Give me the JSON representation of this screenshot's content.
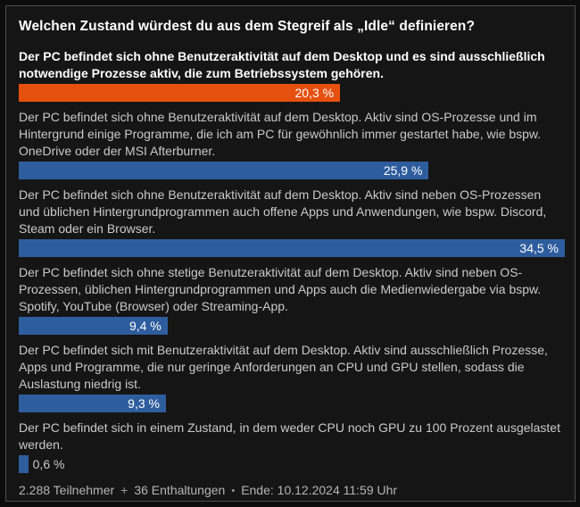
{
  "colors": {
    "page_bg": "#0c0c0c",
    "panel_bg": "#151515",
    "panel_border": "#4d4d4d",
    "title_text": "#ffffff",
    "option_text": "#c9c9c9",
    "highlight_text": "#ffffff",
    "bar_orange": "#e5500f",
    "bar_blue": "#2e5d9e",
    "bar_label": "#ffffff",
    "footer_text": "#b5b5b5",
    "footer_sep": "#9a9a9a"
  },
  "poll": {
    "title": "Welchen Zustand würdest du aus dem Stegreif als „Idle“ definieren?",
    "max_value": 34.5,
    "options": [
      {
        "text": "Der PC befindet sich ohne Benutzeraktivität auf dem Desktop und es sind ausschließlich\nnotwendige Prozesse aktiv, die zum Betriebssystem gehören.",
        "value": 20.3,
        "value_label": "20,3 %",
        "color": "#e5500f",
        "highlighted": true,
        "label_inside": true
      },
      {
        "text": "Der PC befindet sich ohne Benutzeraktivität auf dem Desktop. Aktiv sind OS-Prozesse und im\nHintergrund einige Programme, die ich am PC für gewöhnlich immer gestartet habe, wie bspw.\nOneDrive oder der MSI Afterburner.",
        "value": 25.9,
        "value_label": "25,9 %",
        "color": "#2e5d9e",
        "highlighted": false,
        "label_inside": true
      },
      {
        "text": "Der PC befindet sich ohne Benutzeraktivität auf dem Desktop. Aktiv sind neben OS-Prozessen\nund üblichen Hintergrundprogrammen auch offene Apps und Anwendungen, wie bspw. Discord,\nSteam oder ein Browser.",
        "value": 34.5,
        "value_label": "34,5 %",
        "color": "#2e5d9e",
        "highlighted": false,
        "label_inside": true
      },
      {
        "text": "Der PC befindet sich ohne stetige Benutzeraktivität auf dem Desktop. Aktiv sind neben OS-\nProzessen, üblichen Hintergrundprogrammen und Apps auch die Medienwiedergabe via bspw.\nSpotify, YouTube (Browser) oder Streaming-App.",
        "value": 9.4,
        "value_label": "9,4 %",
        "color": "#2e5d9e",
        "highlighted": false,
        "label_inside": true
      },
      {
        "text": "Der PC befindet sich mit Benutzeraktivität auf dem Desktop. Aktiv sind ausschließlich Prozesse,\nApps und Programme, die nur geringe Anforderungen an CPU und GPU stellen, sodass die\nAuslastung niedrig ist.",
        "value": 9.3,
        "value_label": "9,3 %",
        "color": "#2e5d9e",
        "highlighted": false,
        "label_inside": true
      },
      {
        "text": "Der PC befindet sich in einem Zustand, in dem weder CPU noch GPU zu 100 Prozent ausgelastet\nwerden.",
        "value": 0.6,
        "value_label": "0,6 %",
        "color": "#2e5d9e",
        "highlighted": false,
        "label_inside": false
      }
    ],
    "footer": {
      "participants": "2.288 Teilnehmer",
      "plus_separator": "+",
      "abstentions": "36 Enthaltungen",
      "dot_separator": "•",
      "end_date": "Ende: 10.12.2024 11:59 Uhr"
    }
  },
  "chart_data": {
    "type": "bar",
    "orientation": "horizontal",
    "title": "Welchen Zustand würdest du aus dem Stegreif als „Idle“ definieren?",
    "categories": [
      "Der PC befindet sich ohne Benutzeraktivität auf dem Desktop und es sind ausschließlich notwendige Prozesse aktiv, die zum Betriebssystem gehören.",
      "Der PC befindet sich ohne Benutzeraktivität auf dem Desktop. Aktiv sind OS-Prozesse und im Hintergrund einige Programme, die ich am PC für gewöhnlich immer gestartet habe, wie bspw. OneDrive oder der MSI Afterburner.",
      "Der PC befindet sich ohne Benutzeraktivität auf dem Desktop. Aktiv sind neben OS-Prozessen und üblichen Hintergrundprogrammen auch offene Apps und Anwendungen, wie bspw. Discord, Steam oder ein Browser.",
      "Der PC befindet sich ohne stetige Benutzeraktivität auf dem Desktop. Aktiv sind neben OS-Prozessen, üblichen Hintergrundprogrammen und Apps auch die Medienwiedergabe via bspw. Spotify, YouTube (Browser) oder Streaming-App.",
      "Der PC befindet sich mit Benutzeraktivität auf dem Desktop. Aktiv sind ausschließlich Prozesse, Apps und Programme, die nur geringe Anforderungen an CPU und GPU stellen, sodass die Auslastung niedrig ist.",
      "Der PC befindet sich in einem Zustand, in dem weder CPU noch GPU zu 100 Prozent ausgelastet werden."
    ],
    "values": [
      20.3,
      25.9,
      34.5,
      9.4,
      9.3,
      0.6
    ],
    "value_labels": [
      "20,3 %",
      "25,9 %",
      "34,5 %",
      "9,4 %",
      "9,3 %",
      "0,6 %"
    ],
    "unit": "%",
    "xlim": [
      0,
      34.5
    ],
    "bar_scale_note": "bars scaled relative to max value 34.5 %",
    "highlight_index": 0,
    "legend": "none",
    "grid": false,
    "footnote": "2.288 Teilnehmer + 36 Enthaltungen • Ende: 10.12.2024 11:59 Uhr"
  }
}
